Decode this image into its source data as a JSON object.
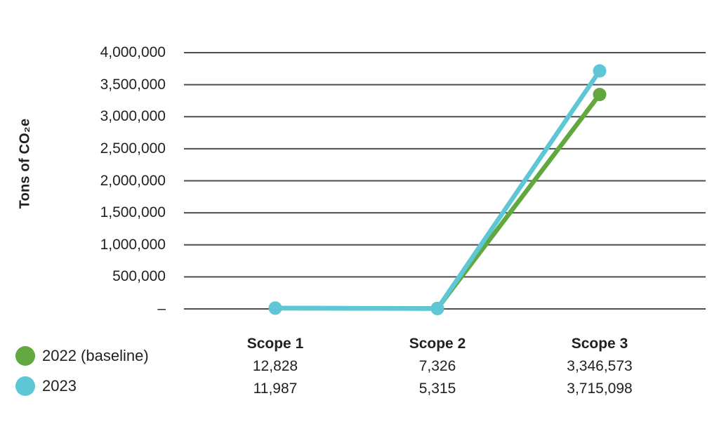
{
  "chart_data": {
    "type": "line",
    "title": "",
    "xlabel": "",
    "ylabel": "Tons of CO₂e",
    "categories": [
      "Scope 1",
      "Scope 2",
      "Scope 3"
    ],
    "series": [
      {
        "name": "2022 (baseline)",
        "color": "#61a83e",
        "values": [
          12828,
          7326,
          3346573
        ],
        "value_labels": [
          "12,828",
          "7,326",
          "3,346,573"
        ]
      },
      {
        "name": "2023",
        "color": "#5ec7d6",
        "values": [
          11987,
          5315,
          3715098
        ],
        "value_labels": [
          "11,987",
          "5,315",
          "3,715,098"
        ]
      }
    ],
    "ylim": [
      0,
      4000000
    ],
    "ytick_interval": 500000,
    "ytick_labels_top_to_bottom": [
      "4,000,000",
      "3,500,000",
      "3,000,000",
      "2,500,000",
      "2,000,000",
      "1,500,000",
      "1,000,000",
      "500,000",
      "–"
    ],
    "grid": "horizontal",
    "gridline_color": "#4d4d4d",
    "text_color": "#231f20",
    "legend_position": "bottom-left",
    "marker": "circle",
    "data_table_below_axis": true
  }
}
